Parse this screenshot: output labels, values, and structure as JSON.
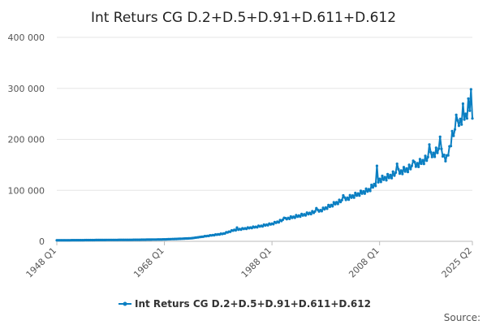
{
  "chart_data": {
    "type": "line",
    "title": "Int Returs CG D.2+D.5+D.91+D.611+D.612",
    "xlabel": "",
    "ylabel": "",
    "x_tick_labels": [
      "1948 Q1",
      "1968 Q1",
      "1988 Q1",
      "2008 Q1",
      "2025 Q2"
    ],
    "y_ticks": [
      0,
      100000,
      200000,
      300000,
      400000
    ],
    "y_tick_labels": [
      "0",
      "100 000",
      "200 000",
      "300 000",
      "400 000"
    ],
    "ylim": [
      0,
      400000
    ],
    "x_range": [
      "1948 Q1",
      "2025 Q2"
    ],
    "grid": "horizontal",
    "legend": "bottom",
    "source_label": "Source:",
    "series": [
      {
        "name": "Int Returs CG D.2+D.5+D.91+D.611+D.612",
        "color": "#0b7fc2",
        "points": [
          [
            "1948 Q1",
            2000
          ],
          [
            "1953 Q1",
            2300
          ],
          [
            "1958 Q1",
            2700
          ],
          [
            "1963 Q1",
            3000
          ],
          [
            "1968 Q1",
            3800
          ],
          [
            "1971 Q1",
            5000
          ],
          [
            "1973 Q1",
            6000
          ],
          [
            "1975 Q1",
            9000
          ],
          [
            "1977 Q1",
            12000
          ],
          [
            "1979 Q1",
            15000
          ],
          [
            "1981 Q1",
            22000
          ],
          [
            "1983 Q1",
            25000
          ],
          [
            "1985 Q1",
            28000
          ],
          [
            "1988 Q1",
            34000
          ],
          [
            "1991 Q1",
            45000
          ],
          [
            "1994 Q1",
            52000
          ],
          [
            "1997 Q1",
            60000
          ],
          [
            "2000 Q1",
            75000
          ],
          [
            "2003 Q1",
            88000
          ],
          [
            "2006 Q1",
            100000
          ],
          [
            "2008 Q1",
            120000
          ],
          [
            "2009 Q3",
            125000
          ],
          [
            "2011 Q1",
            132000
          ],
          [
            "2013 Q1",
            140000
          ],
          [
            "2015 Q1",
            150000
          ],
          [
            "2017 Q1",
            162000
          ],
          [
            "2019 Q1",
            178000
          ],
          [
            "2020 Q3",
            160000
          ],
          [
            "2021 Q3",
            205000
          ],
          [
            "2023 Q1",
            235000
          ],
          [
            "2024 Q1",
            245000
          ],
          [
            "2025 Q1",
            265000
          ],
          [
            "2025 Q2",
            250000
          ]
        ],
        "spikes": [
          [
            "1981 Q3",
            27000
          ],
          [
            "1990 Q2",
            46000
          ],
          [
            "1996 Q2",
            65000
          ],
          [
            "2001 Q2",
            90000
          ],
          [
            "2007 Q3",
            148000
          ],
          [
            "2011 Q2",
            152000
          ],
          [
            "2014 Q2",
            158000
          ],
          [
            "2017 Q2",
            190000
          ],
          [
            "2019 Q2",
            205000
          ],
          [
            "2022 Q2",
            248000
          ],
          [
            "2023 Q3",
            270000
          ],
          [
            "2024 Q3",
            280000
          ],
          [
            "2025 Q1",
            298000
          ]
        ]
      }
    ]
  }
}
